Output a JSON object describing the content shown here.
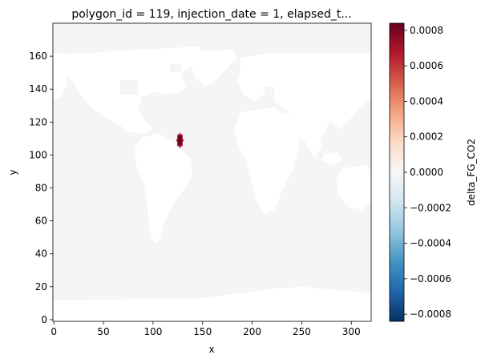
{
  "chart_data": {
    "type": "heatmap",
    "title": "polygon_id = 119, injection_date = 1, elapsed_t...",
    "xlabel": "x",
    "ylabel": "y",
    "xlim": [
      -1,
      320
    ],
    "ylim": [
      -1,
      180
    ],
    "x_ticks": [
      "0",
      "50",
      "100",
      "150",
      "200",
      "250",
      "300"
    ],
    "x_tick_values": [
      0,
      50,
      100,
      150,
      200,
      250,
      300
    ],
    "y_ticks": [
      "0",
      "20",
      "40",
      "60",
      "80",
      "100",
      "120",
      "140",
      "160"
    ],
    "y_tick_values": [
      0,
      20,
      40,
      60,
      80,
      100,
      120,
      140,
      160
    ],
    "colorbar": {
      "label": "delta_FG_CO2",
      "colormap": "RdBu_r",
      "vmin": -0.00084,
      "vmax": 0.00084,
      "ticks": [
        "−0.0008",
        "−0.0006",
        "−0.0004",
        "−0.0002",
        "0.0000",
        "0.0002",
        "0.0004",
        "0.0006",
        "0.0008"
      ],
      "tick_values": [
        -0.0008,
        -0.0006,
        -0.0004,
        -0.0002,
        0,
        0.0002,
        0.0004,
        0.0006,
        0.0008
      ]
    },
    "background_value": 0.0,
    "hotspot": {
      "x_range": [
        124,
        130
      ],
      "y_range": [
        105,
        113
      ],
      "max_value": 0.00084
    },
    "land_color": "#ffffff",
    "ocean_color": "#f5f5f5"
  }
}
